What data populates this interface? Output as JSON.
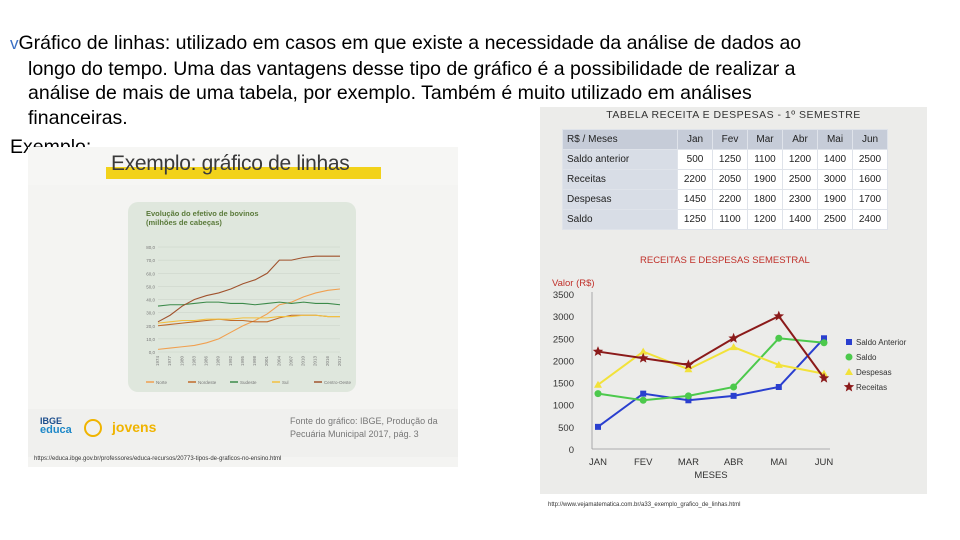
{
  "paragraph": {
    "bullet": "v",
    "lines": [
      "Gráfico de linhas: utilizado em casos em que existe a necessidade da análise de dados ao",
      "longo do tempo. Uma das vantagens desse tipo de gráfico é a possibilidade de realizar a",
      "análise de mais de uma tabela, por exemplo. Também é muito utilizado em análises",
      "financeiras."
    ]
  },
  "exemplo_label": "Exemplo:",
  "left_image": {
    "header": "Exemplo: gráfico de linhas",
    "card_title_1": "Evolução do efetivo de bovinos",
    "card_title_2": "(milhões de cabeças)",
    "y_ticks": [
      "80,0",
      "70,0",
      "60,0",
      "50,0",
      "40,0",
      "30,0",
      "20,0",
      "10,0",
      "0,0"
    ],
    "x_ticks": [
      "1974",
      "1977",
      "1980",
      "1983",
      "1986",
      "1989",
      "1992",
      "1995",
      "1998",
      "2001",
      "2004",
      "2007",
      "2010",
      "2013",
      "2016",
      "2017"
    ],
    "legend": [
      "Norte",
      "Nordeste",
      "Sudeste",
      "Sul",
      "Centro-Oeste"
    ],
    "colors": {
      "header_line": "#f2d21a",
      "norte": "#f0a050",
      "nordeste": "#c06a2a",
      "sudeste": "#3c8a4a",
      "sul": "#f2c040",
      "centro_oeste": "#a0522d"
    },
    "logo_1": "IBGE",
    "logo_2": "educa",
    "jovens": "jovens",
    "fonte": "Fonte do gráfico: IBGE, Produção da Pecuária Municipal 2017, pág. 3",
    "url": "https://educa.ibge.gov.br/professores/educa-recursos/20773-tipos-de-graficos-no-ensino.html"
  },
  "right_image": {
    "table_title": "TABELA RECEITA E DESPESAS - 1º SEMESTRE",
    "table": {
      "header": [
        "R$ / Meses",
        "Jan",
        "Fev",
        "Mar",
        "Abr",
        "Mai",
        "Jun"
      ],
      "rows": [
        {
          "label": "Saldo anterior",
          "values": [
            "500",
            "1250",
            "1100",
            "1200",
            "1400",
            "2500"
          ]
        },
        {
          "label": "Receitas",
          "values": [
            "2200",
            "2050",
            "1900",
            "2500",
            "3000",
            "1600"
          ]
        },
        {
          "label": "Despesas",
          "values": [
            "1450",
            "2200",
            "1800",
            "2300",
            "1900",
            "1700"
          ]
        },
        {
          "label": "Saldo",
          "values": [
            "1250",
            "1100",
            "1200",
            "1400",
            "2500",
            "2400"
          ]
        }
      ]
    },
    "url": "http://www.vejamatematica.com.br/a33_exemplo_grafico_de_linhas.html"
  },
  "chart_data": [
    {
      "type": "line",
      "title": "Evolução do efetivo de bovinos (milhões de cabeças)",
      "x": [
        "1974",
        "1977",
        "1980",
        "1983",
        "1986",
        "1989",
        "1992",
        "1995",
        "1998",
        "2001",
        "2004",
        "2007",
        "2010",
        "2013",
        "2016",
        "2017"
      ],
      "ylim": [
        0,
        80
      ],
      "series": [
        {
          "name": "Norte",
          "values": [
            2,
            3,
            4,
            5,
            7,
            10,
            15,
            20,
            24,
            29,
            36,
            38,
            42,
            45,
            47,
            48
          ]
        },
        {
          "name": "Nordeste",
          "values": [
            20,
            21,
            22,
            23,
            24,
            25,
            24,
            24,
            23,
            23,
            26,
            28,
            28,
            28,
            27,
            27
          ]
        },
        {
          "name": "Sudeste",
          "values": [
            35,
            36,
            36,
            37,
            38,
            38,
            37,
            37,
            36,
            37,
            38,
            37,
            38,
            37,
            37,
            36
          ]
        },
        {
          "name": "Sul",
          "values": [
            22,
            23,
            24,
            24,
            25,
            25,
            25,
            26,
            26,
            26,
            27,
            27,
            28,
            28,
            27,
            27
          ]
        },
        {
          "name": "Centro-Oeste",
          "values": [
            23,
            28,
            35,
            40,
            43,
            45,
            48,
            52,
            55,
            60,
            70,
            70,
            72,
            73,
            73,
            73
          ]
        }
      ]
    },
    {
      "type": "line",
      "title": "RECEITAS E DESPESAS   SEMESTRAL",
      "ylabel": "Valor (R$)",
      "xlabel": "MESES",
      "categories": [
        "JAN",
        "FEV",
        "MAR",
        "ABR",
        "MAI",
        "JUN"
      ],
      "ylim": [
        0,
        3500
      ],
      "y_ticks": [
        "0",
        "500",
        "1000",
        "1500",
        "2000",
        "2500",
        "3000",
        "3500"
      ],
      "legend_position": "right",
      "series": [
        {
          "name": "Saldo Anterior",
          "color": "#2a3fcf",
          "marker": "square",
          "values": [
            500,
            1250,
            1100,
            1200,
            1400,
            2500
          ]
        },
        {
          "name": "Saldo",
          "color": "#4cc94c",
          "marker": "circle",
          "values": [
            1250,
            1100,
            1200,
            1400,
            2500,
            2400
          ]
        },
        {
          "name": "Despesas",
          "color": "#f2e23a",
          "marker": "triangle",
          "values": [
            1450,
            2200,
            1800,
            2300,
            1900,
            1700
          ]
        },
        {
          "name": "Receitas",
          "color": "#8b1a1a",
          "marker": "star",
          "values": [
            2200,
            2050,
            1900,
            2500,
            3000,
            1600
          ]
        }
      ]
    }
  ]
}
